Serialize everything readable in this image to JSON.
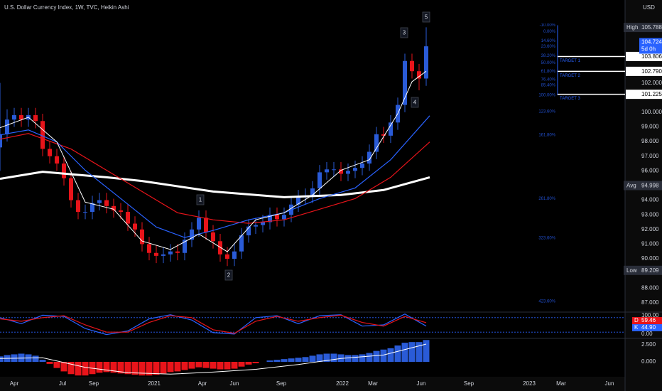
{
  "chart_data": {
    "type": "candlestick",
    "title": "U.S. Dollar Currency Index, 1W, TVC, Heikin Ashi",
    "currency": "USD",
    "up_color": "#2a5bd7",
    "down_color": "#e8141a",
    "x": [
      0,
      2,
      4,
      6,
      8,
      10,
      12,
      14,
      16,
      18,
      20,
      22,
      24,
      26,
      28,
      30,
      32,
      34,
      36,
      38,
      40,
      42,
      44,
      46,
      48,
      50,
      52,
      54,
      56,
      58,
      60,
      62,
      64,
      66,
      68,
      70,
      72,
      74,
      76,
      78,
      80,
      82,
      84,
      86,
      88,
      90,
      92,
      94,
      96,
      98,
      100,
      102,
      104,
      106,
      108,
      110,
      112,
      114,
      116,
      118,
      120
    ],
    "open": [
      97.6,
      98.5,
      99.5,
      99.8,
      99.5,
      99.8,
      99.4,
      97.5,
      97.0,
      96.5,
      95.5,
      94.0,
      93.2,
      93.2,
      93.8,
      94.0,
      93.6,
      93.3,
      93.2,
      92.4,
      92.0,
      91.0,
      90.4,
      90.2,
      90.3,
      90.5,
      90.4,
      91.3,
      92.0,
      92.8,
      91.8,
      91.2,
      90.3,
      90.0,
      90.5,
      91.6,
      92.2,
      92.3,
      92.5,
      93.0,
      92.7,
      93.0,
      93.7,
      94.2,
      94.3,
      94.8,
      95.9,
      96.1,
      96.1,
      95.8,
      96.0,
      96.2,
      96.5,
      97.3,
      98.5,
      98.4,
      99.3,
      100.5,
      103.5,
      102.8,
      102.3
    ],
    "high": [
      102.0,
      100.2,
      100.3,
      100.3,
      100.3,
      100.3,
      99.9,
      98.0,
      97.5,
      97.0,
      96.0,
      94.5,
      93.7,
      94.3,
      94.5,
      94.5,
      94.1,
      93.8,
      93.7,
      92.9,
      92.5,
      91.5,
      90.9,
      90.8,
      91.0,
      91.0,
      91.8,
      92.5,
      93.3,
      93.3,
      92.3,
      91.7,
      90.8,
      91.0,
      92.1,
      92.7,
      92.8,
      93.0,
      93.5,
      93.5,
      93.5,
      94.2,
      94.7,
      94.8,
      95.3,
      96.4,
      96.6,
      96.6,
      96.6,
      96.5,
      96.7,
      97.0,
      97.8,
      99.0,
      99.0,
      99.8,
      101.0,
      104.0,
      104.0,
      103.3,
      105.8
    ],
    "low": [
      96.0,
      98.0,
      99.0,
      99.0,
      99.0,
      98.9,
      97.0,
      96.5,
      96.0,
      95.0,
      93.5,
      92.7,
      92.7,
      92.7,
      93.3,
      93.1,
      92.8,
      92.7,
      91.9,
      91.5,
      90.5,
      89.9,
      89.7,
      89.7,
      89.8,
      89.9,
      89.9,
      90.8,
      91.5,
      91.3,
      90.7,
      89.8,
      89.5,
      89.5,
      90.0,
      91.1,
      91.7,
      91.8,
      92.0,
      92.2,
      92.2,
      92.5,
      93.2,
      93.7,
      93.8,
      94.3,
      95.4,
      95.6,
      95.3,
      95.3,
      95.5,
      95.7,
      96.0,
      96.8,
      97.9,
      97.9,
      98.8,
      100.0,
      102.3,
      101.5,
      101.8
    ],
    "close": [
      98.5,
      99.5,
      99.8,
      99.5,
      99.8,
      99.4,
      97.5,
      97.0,
      96.5,
      95.5,
      94.0,
      93.2,
      93.2,
      93.8,
      94.0,
      93.6,
      93.3,
      93.2,
      92.4,
      92.0,
      91.0,
      90.4,
      90.2,
      90.3,
      90.5,
      90.4,
      91.3,
      92.0,
      92.8,
      91.8,
      91.2,
      90.3,
      90.0,
      90.5,
      91.6,
      92.2,
      92.3,
      92.5,
      93.0,
      92.7,
      93.0,
      93.7,
      94.2,
      94.3,
      94.8,
      95.9,
      96.1,
      96.1,
      95.8,
      96.0,
      96.2,
      96.5,
      97.3,
      98.5,
      98.4,
      99.3,
      100.5,
      103.5,
      102.8,
      102.3,
      104.5
    ],
    "overlays": [
      {
        "color": "#ffffff",
        "width": 3,
        "x": [
          0,
          12,
          30,
          40,
          60,
          80,
          96,
          108,
          121
        ],
        "values": [
          95.46,
          95.94,
          95.56,
          95.31,
          94.59,
          94.2,
          94.35,
          94.69,
          95.56
        ]
      },
      {
        "color": "#e8141a",
        "width": 1.2,
        "x": [
          0,
          8,
          20,
          30,
          40,
          50,
          60,
          70,
          80,
          90,
          100,
          110,
          121
        ],
        "values": [
          98.16,
          98.55,
          97.49,
          96.04,
          94.59,
          93.14,
          92.66,
          92.42,
          92.66,
          93.38,
          94.11,
          95.56,
          97.97
        ]
      },
      {
        "color": "#2962ff",
        "width": 1.2,
        "x": [
          0,
          8,
          16,
          24,
          34,
          44,
          52,
          60,
          70,
          80,
          90,
          100,
          110,
          121
        ],
        "values": [
          98.45,
          98.79,
          97.97,
          96.04,
          94.11,
          92.17,
          91.45,
          91.93,
          92.66,
          93.14,
          94.11,
          94.83,
          96.76,
          99.76
        ]
      },
      {
        "color": "#ffffff",
        "width": 1,
        "x": [
          0,
          8,
          16,
          24,
          32,
          40,
          48,
          56,
          64,
          72,
          80,
          88,
          96,
          104,
          112,
          116,
          120
        ],
        "values": [
          98.94,
          99.66,
          97.97,
          93.86,
          93.38,
          91.21,
          90.63,
          91.69,
          90.48,
          92.66,
          93.14,
          94.35,
          96.04,
          96.76,
          99.9,
          102.08,
          102.8
        ]
      }
    ],
    "annotations": [
      "1",
      "2",
      "3",
      "4",
      "5"
    ],
    "fib_levels": [
      {
        "value": 105.94,
        "label": "-10.00%"
      },
      {
        "value": 105.51,
        "label": "0.00%"
      },
      {
        "value": 104.88,
        "label": "14.60%"
      },
      {
        "value": 104.49,
        "label": "23.60%"
      },
      {
        "value": 103.86,
        "label": "38.20%"
      },
      {
        "value": 103.38,
        "label": "50.00%"
      },
      {
        "value": 102.8,
        "label": "61.80%"
      },
      {
        "value": 102.22,
        "label": "76.40%"
      },
      {
        "value": 101.84,
        "label": "85.40%"
      },
      {
        "value": 101.16,
        "label": "100.00%"
      },
      {
        "value": 100.05,
        "label": "123.60%"
      },
      {
        "value": 98.45,
        "label": "161.80%"
      },
      {
        "value": 94.11,
        "label": "261.80%"
      },
      {
        "value": 91.4,
        "label": "323.60%"
      },
      {
        "value": 87.1,
        "label": "423.60%"
      }
    ],
    "targets": [
      {
        "name": "TARGET 1",
        "value": 103.806,
        "label": "103.806"
      },
      {
        "name": "TARGET 2",
        "value": 102.79,
        "label": "102.790"
      },
      {
        "name": "TARGET 3",
        "value": 101.225,
        "label": "101.225"
      }
    ],
    "readouts": [
      {
        "name": "High",
        "value": 105.788,
        "label": "105.788"
      },
      {
        "name": "Avg",
        "value": 94.998,
        "label": "94.998"
      },
      {
        "name": "Low",
        "value": 89.209,
        "label": "89.209"
      }
    ],
    "last_price": {
      "value": 104.724,
      "label": "104.724",
      "countdown": "5d 0h"
    },
    "xlim": [
      0,
      176
    ],
    "xticks": [
      {
        "value": 4,
        "label": "Apr"
      },
      {
        "value": 17.6,
        "label": "Jul"
      },
      {
        "value": 26.4,
        "label": "Sep"
      },
      {
        "value": 43.4,
        "label": "2021"
      },
      {
        "value": 57,
        "label": "Apr"
      },
      {
        "value": 66,
        "label": "Jun"
      },
      {
        "value": 79.2,
        "label": "Sep"
      },
      {
        "value": 96.4,
        "label": "2022"
      },
      {
        "value": 105,
        "label": "Mar"
      },
      {
        "value": 118.6,
        "label": "Jun"
      },
      {
        "value": 132,
        "label": "Sep"
      },
      {
        "value": 149,
        "label": "2023"
      },
      {
        "value": 158,
        "label": "Mar"
      },
      {
        "value": 171.6,
        "label": "Jun"
      }
    ],
    "ylim": [
      86.41,
      107.66
    ],
    "yticks": [
      {
        "value": 87,
        "label": "87.000"
      },
      {
        "value": 88,
        "label": "88.000"
      },
      {
        "value": 90,
        "label": "90.000"
      },
      {
        "value": 91,
        "label": "91.000"
      },
      {
        "value": 92,
        "label": "92.000"
      },
      {
        "value": 93,
        "label": "93.000"
      },
      {
        "value": 94,
        "label": "94.000"
      },
      {
        "value": 96,
        "label": "96.000"
      },
      {
        "value": 97,
        "label": "97.000"
      },
      {
        "value": 98,
        "label": "98.000"
      },
      {
        "value": 99,
        "label": "99.000"
      },
      {
        "value": 100,
        "label": "100.000"
      },
      {
        "value": 102,
        "label": "102.000"
      }
    ],
    "stoch": {
      "ylim": [
        0,
        100
      ],
      "yticks": [
        {
          "value": 100,
          "label": "100.00"
        },
        {
          "value": 0,
          "label": "0.00"
        }
      ],
      "levels": [
        80,
        20
      ],
      "x": [
        0,
        6,
        12,
        18,
        24,
        30,
        36,
        42,
        48,
        54,
        60,
        66,
        72,
        78,
        84,
        90,
        96,
        102,
        108,
        114,
        120
      ],
      "series": [
        {
          "name": "K",
          "color": "#2962ff",
          "values": [
            80,
            55,
            90,
            85,
            35,
            10,
            25,
            75,
            92,
            70,
            18,
            12,
            80,
            88,
            55,
            88,
            92,
            45,
            50,
            95,
            45
          ]
        },
        {
          "name": "D",
          "color": "#e8141a",
          "values": [
            75,
            65,
            80,
            88,
            50,
            20,
            20,
            60,
            88,
            80,
            30,
            15,
            65,
            85,
            65,
            80,
            90,
            60,
            45,
            85,
            59
          ]
        }
      ],
      "readouts": [
        {
          "name": "D",
          "color": "#e8141a",
          "value": 59.46
        },
        {
          "name": "K",
          "color": "#2962ff",
          "value": 44.9,
          "label": "44.90"
        }
      ]
    },
    "macd": {
      "ylim": [
        -2.19,
        3.23
      ],
      "yticks": [
        {
          "value": 2.5,
          "label": "2.500"
        },
        {
          "value": 0,
          "label": "0.000"
        }
      ],
      "histogram": [
        0.8,
        1.0,
        1.1,
        1.2,
        1.1,
        0.9,
        0.3,
        -0.3,
        -0.9,
        -1.4,
        -1.8,
        -2.0,
        -2.0,
        -1.8,
        -1.6,
        -1.5,
        -1.6,
        -1.7,
        -1.8,
        -1.9,
        -2.0,
        -2.0,
        -1.9,
        -1.7,
        -1.5,
        -1.4,
        -1.2,
        -1.0,
        -0.8,
        -0.9,
        -1.0,
        -1.1,
        -1.1,
        -1.0,
        -0.7,
        -0.4,
        -0.2,
        0.0,
        0.2,
        0.3,
        0.4,
        0.5,
        0.6,
        0.7,
        0.9,
        1.1,
        1.2,
        1.2,
        1.1,
        1.0,
        1.0,
        1.1,
        1.3,
        1.6,
        1.8,
        2.0,
        2.4,
        2.8,
        2.9,
        2.9,
        3.2
      ],
      "signal_x": [
        0,
        12,
        24,
        36,
        48,
        60,
        72,
        84,
        96,
        108,
        120
      ],
      "signal": [
        0.5,
        0.6,
        -0.8,
        -1.6,
        -1.8,
        -1.5,
        -1.1,
        -0.4,
        0.5,
        1.0,
        2.6
      ]
    }
  }
}
